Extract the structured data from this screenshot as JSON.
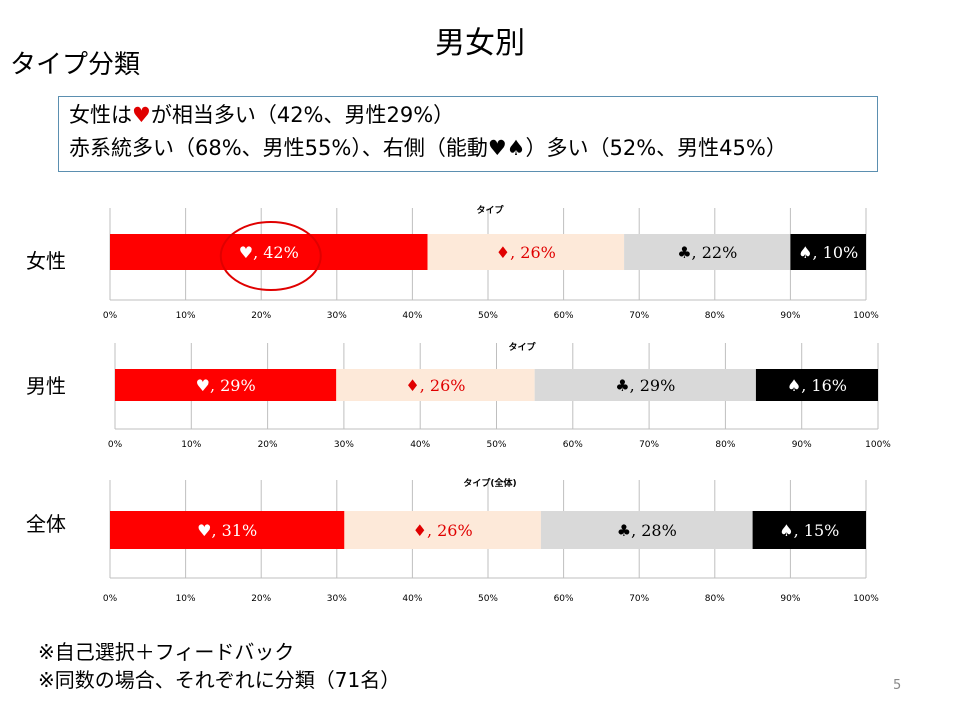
{
  "slide": {
    "title": "男女別",
    "subtitle": "タイプ分類",
    "summary_line1_pre": "女性は",
    "summary_line1_heart": "♥",
    "summary_line1_post": "が相当多い（42%、男性29%）",
    "summary_line2": "赤系統多い（68%、男性55%）、右側（能動♥♠）多い（52%、男性45%）",
    "note1": "※自己選択＋フィードバック",
    "note2": "※同数の場合、それぞれに分類（71名）",
    "page_number": "5"
  },
  "colors": {
    "heart": "#ff0000",
    "diamond": "#fde9d9",
    "club": "#d9d9d9",
    "spade": "#000000",
    "circle": "#e00000",
    "axis": "#bfbfbf"
  },
  "chart_data": [
    {
      "type": "bar",
      "orientation": "horizontal-stacked-100",
      "row_label": "女性",
      "title": "タイプ",
      "xlim": [
        0,
        100
      ],
      "x_ticks": [
        "0%",
        "10%",
        "20%",
        "30%",
        "40%",
        "50%",
        "60%",
        "70%",
        "80%",
        "90%",
        "100%"
      ],
      "series": [
        {
          "name": "♥",
          "values": [
            42
          ],
          "label": "♥, 42%"
        },
        {
          "name": "♦",
          "values": [
            26
          ],
          "label": "♦, 26%"
        },
        {
          "name": "♣",
          "values": [
            22
          ],
          "label": "♣, 22%"
        },
        {
          "name": "♠",
          "values": [
            10
          ],
          "label": "♠, 10%"
        }
      ]
    },
    {
      "type": "bar",
      "orientation": "horizontal-stacked-100",
      "row_label": "男性",
      "title": "タイプ",
      "xlim": [
        0,
        100
      ],
      "x_ticks": [
        "0%",
        "10%",
        "20%",
        "30%",
        "40%",
        "50%",
        "60%",
        "70%",
        "80%",
        "90%",
        "100%"
      ],
      "series": [
        {
          "name": "♥",
          "values": [
            29
          ],
          "label": "♥, 29%"
        },
        {
          "name": "♦",
          "values": [
            26
          ],
          "label": "♦, 26%"
        },
        {
          "name": "♣",
          "values": [
            29
          ],
          "label": "♣, 29%"
        },
        {
          "name": "♠",
          "values": [
            16
          ],
          "label": "♠, 16%"
        }
      ]
    },
    {
      "type": "bar",
      "orientation": "horizontal-stacked-100",
      "row_label": "全体",
      "title": "タイプ(全体)",
      "xlim": [
        0,
        100
      ],
      "x_ticks": [
        "0%",
        "10%",
        "20%",
        "30%",
        "40%",
        "50%",
        "60%",
        "70%",
        "80%",
        "90%",
        "100%"
      ],
      "series": [
        {
          "name": "♥",
          "values": [
            31
          ],
          "label": "♥, 31%"
        },
        {
          "name": "♦",
          "values": [
            26
          ],
          "label": "♦, 26%"
        },
        {
          "name": "♣",
          "values": [
            28
          ],
          "label": "♣, 28%"
        },
        {
          "name": "♠",
          "values": [
            15
          ],
          "label": "♠, 15%"
        }
      ]
    }
  ]
}
